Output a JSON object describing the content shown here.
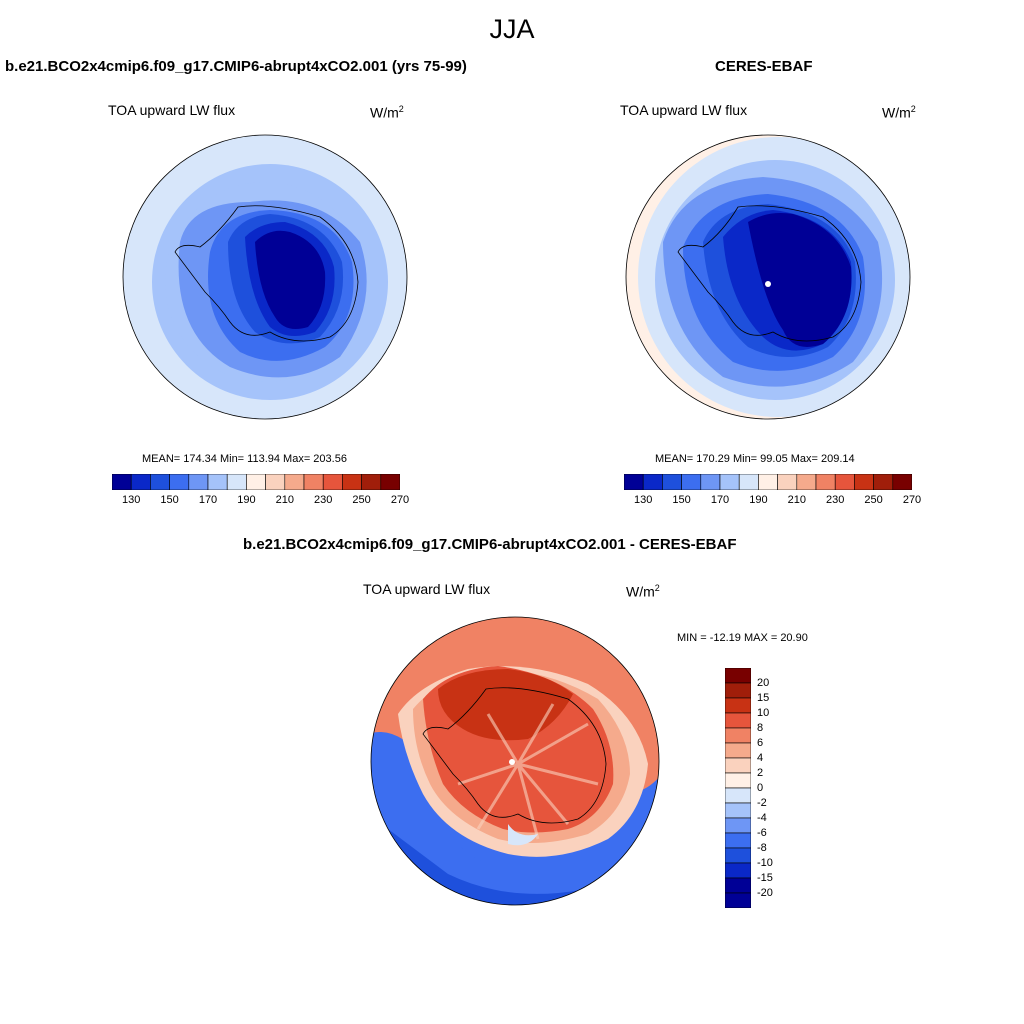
{
  "season": "JJA",
  "colors": {
    "seq": [
      "#000096",
      "#0a28c8",
      "#1e50dc",
      "#3c6ef0",
      "#6e96f5",
      "#a5c3fa",
      "#d7e6fa",
      "#fff0e6",
      "#fad2be",
      "#f5aa8c",
      "#f08264",
      "#e6553c",
      "#c83214",
      "#a01e0a",
      "#780000"
    ],
    "diff": [
      "#000096",
      "#0a28c8",
      "#1e50dc",
      "#3c6ef0",
      "#6e96f5",
      "#a5c3fa",
      "#d7e6fa",
      "#fff0e6",
      "#fad2be",
      "#f5aa8c",
      "#f08264",
      "#e6553c",
      "#c83214",
      "#a01e0a",
      "#780000"
    ]
  },
  "panels": {
    "model": {
      "title": "b.e21.BCO2x4cmip6.f09_g17.CMIP6-abrupt4xCO2.001 (yrs 75-99)",
      "variable": "TOA upward LW flux",
      "units_base": "W/m",
      "units_exp": "2",
      "stats": "MEAN= 174.34  Min= 113.94  Max= 203.56",
      "colorbar_ticks": [
        "130",
        "150",
        "170",
        "190",
        "210",
        "230",
        "250",
        "270"
      ]
    },
    "obs": {
      "title": "CERES-EBAF",
      "variable": "TOA upward LW flux",
      "units_base": "W/m",
      "units_exp": "2",
      "stats": "MEAN= 170.29  Min=  99.05  Max= 209.14",
      "colorbar_ticks": [
        "130",
        "150",
        "170",
        "190",
        "210",
        "230",
        "250",
        "270"
      ]
    },
    "diff": {
      "title": "b.e21.BCO2x4cmip6.f09_g17.CMIP6-abrupt4xCO2.001 - CERES-EBAF",
      "variable": "TOA upward LW flux",
      "units_base": "W/m",
      "units_exp": "2",
      "stats": "MIN = -12.19 MAX =  20.90",
      "colorbar_ticks": [
        "20",
        "15",
        "10",
        "8",
        "6",
        "4",
        "2",
        "0",
        "-2",
        "-4",
        "-6",
        "-8",
        "-10",
        "-15",
        "-20"
      ]
    }
  }
}
